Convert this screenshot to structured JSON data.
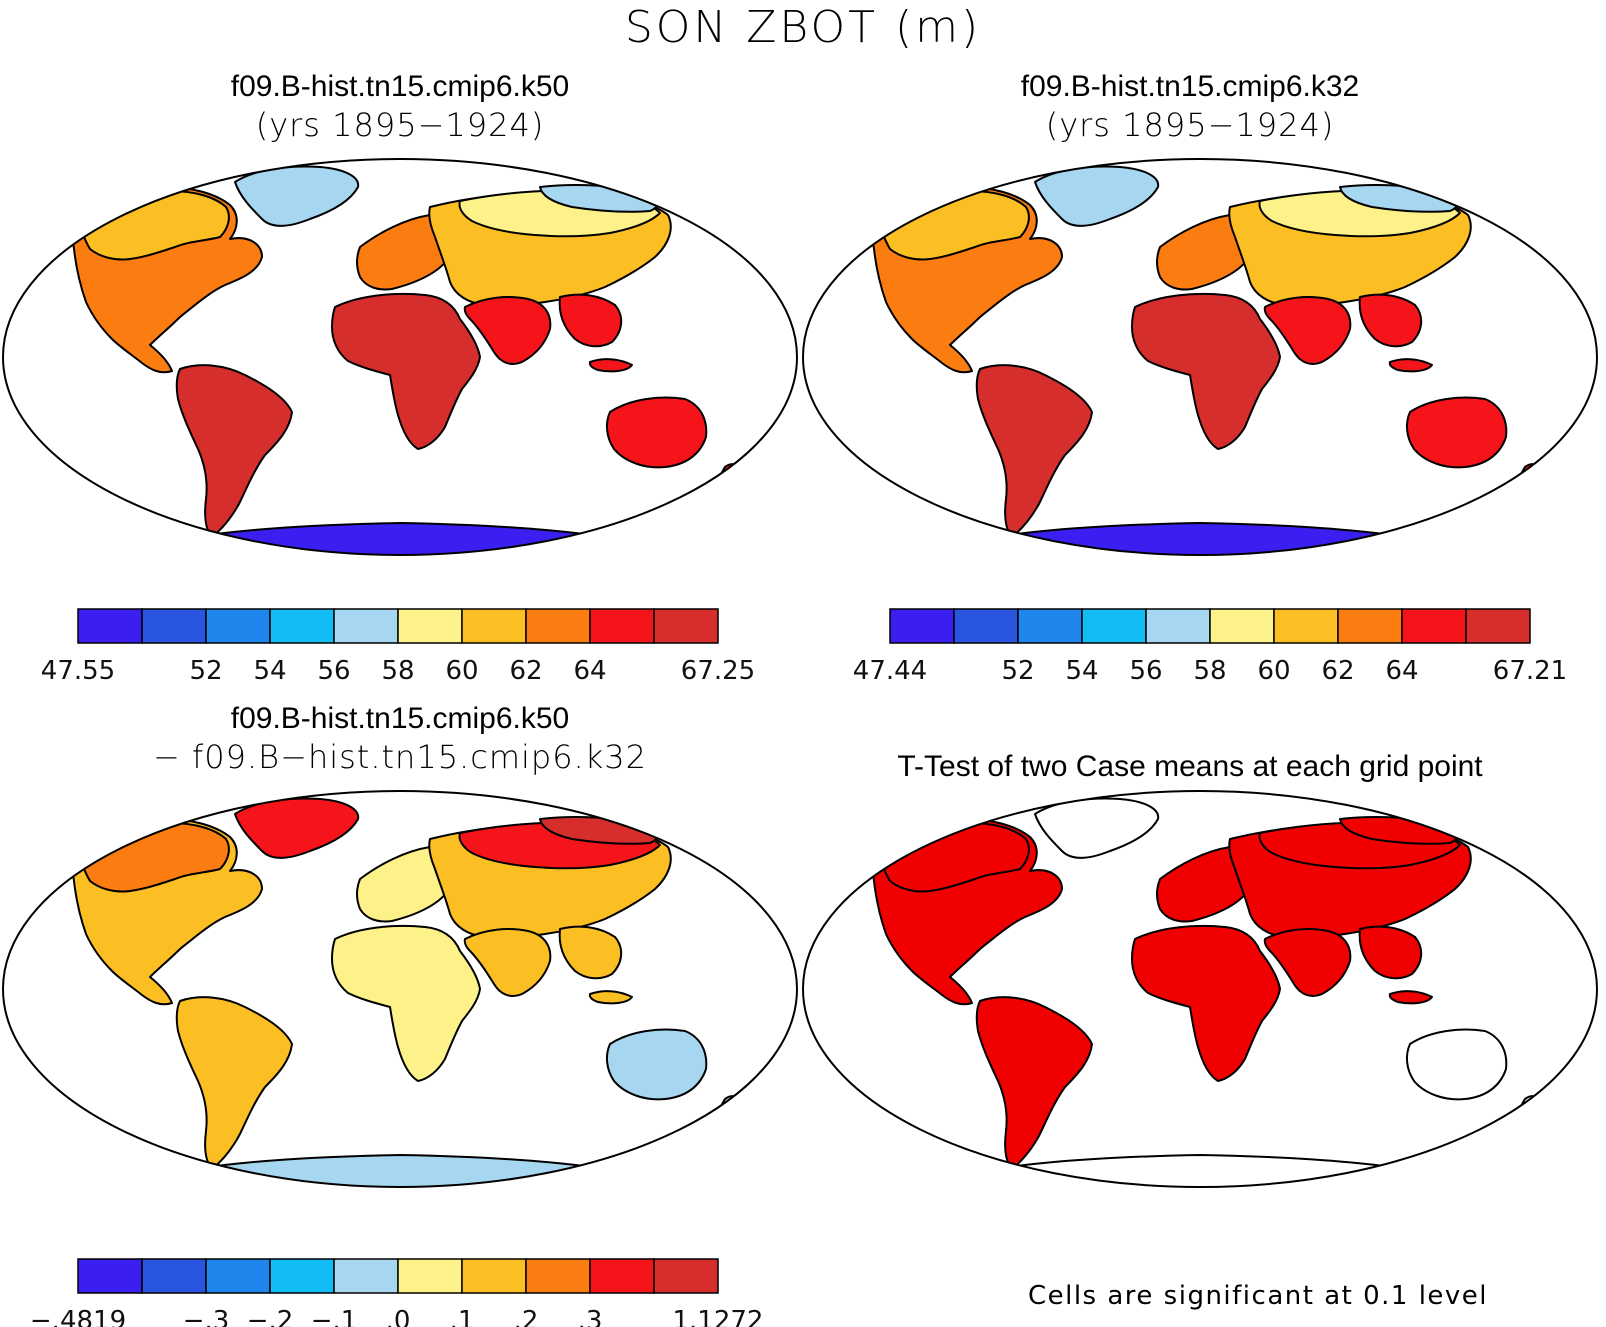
{
  "main_title": "SON ZBOT (m)",
  "panels": [
    {
      "id": "k50",
      "title1": "f09.B-hist.tn15.cmip6.k50",
      "title2": "(yrs 1895−1924)"
    },
    {
      "id": "k32",
      "title1": "f09.B-hist.tn15.cmip6.k32",
      "title2": "(yrs 1895−1924)"
    },
    {
      "id": "diff",
      "title1": "f09.B-hist.tn15.cmip6.k50",
      "title2": "− f09.B−hist.tn15.cmip6.k32"
    },
    {
      "id": "ttest",
      "title1": "T-Test of two Case means at each grid point",
      "title2": ""
    }
  ],
  "colorbars": [
    {
      "id": "cb1",
      "colors": [
        "#3b1ff0",
        "#2a55e0",
        "#1f86ee",
        "#12bdf5",
        "#a6d6f0",
        "#fdf18a",
        "#fbbf24",
        "#fb7c10",
        "#f5141a",
        "#d62d2d"
      ],
      "labels": [
        "47.55",
        "",
        "52",
        "54",
        "56",
        "58",
        "60",
        "62",
        "64",
        "",
        "67.25"
      ]
    },
    {
      "id": "cb2",
      "colors": [
        "#3b1ff0",
        "#2a55e0",
        "#1f86ee",
        "#12bdf5",
        "#a6d6f0",
        "#fdf18a",
        "#fbbf24",
        "#fb7c10",
        "#f5141a",
        "#d62d2d"
      ],
      "labels": [
        "47.44",
        "",
        "52",
        "54",
        "56",
        "58",
        "60",
        "62",
        "64",
        "",
        "67.21"
      ]
    },
    {
      "id": "cb3",
      "colors": [
        "#3b1ff0",
        "#2a55e0",
        "#1f86ee",
        "#12bdf5",
        "#a6d6f0",
        "#fdf18a",
        "#fbbf24",
        "#fb7c10",
        "#f5141a",
        "#d62d2d"
      ],
      "labels": [
        "−.4819",
        "",
        "−.3",
        "−.2",
        "−.1",
        ".0",
        ".1",
        ".2",
        ".3",
        "",
        "1.1272"
      ]
    }
  ],
  "significance_note": "Cells are significant at 0.1 level",
  "colors": {
    "k50": {
      "na": "#fb7c10",
      "canada": "#fbbf24",
      "greenland": "#a6d6f0",
      "sa": "#d62d2d",
      "africa": "#d62d2d",
      "eurasia": "#fbbf24",
      "europe": "#fb7c10",
      "asia_s": "#f5141a",
      "siberia": "#fdf18a",
      "arctic": "#a6d6f0",
      "australia": "#f5141a",
      "antarctica": "#3b1ff0"
    },
    "k32": {
      "na": "#fb7c10",
      "canada": "#fbbf24",
      "greenland": "#a6d6f0",
      "sa": "#d62d2d",
      "africa": "#d62d2d",
      "eurasia": "#fbbf24",
      "europe": "#fb7c10",
      "asia_s": "#f5141a",
      "siberia": "#fdf18a",
      "arctic": "#a6d6f0",
      "australia": "#f5141a",
      "antarctica": "#3b1ff0"
    },
    "diff": {
      "na": "#fbbf24",
      "canada": "#fb7c10",
      "greenland": "#f5141a",
      "sa": "#fbbf24",
      "africa": "#fdf18a",
      "eurasia": "#fbbf24",
      "europe": "#fdf18a",
      "asia_s": "#fbbf24",
      "siberia": "#f5141a",
      "arctic": "#d62d2d",
      "australia": "#a6d6f0",
      "antarctica": "#a6d6f0"
    },
    "ttest": {
      "na": "#f00000",
      "canada": "#f00000",
      "greenland": "#ffffff",
      "sa": "#f00000",
      "africa": "#f00000",
      "eurasia": "#f00000",
      "europe": "#f00000",
      "asia_s": "#f00000",
      "siberia": "#f00000",
      "arctic": "#f00000",
      "australia": "#ffffff",
      "antarctica": "#ffffff"
    }
  }
}
